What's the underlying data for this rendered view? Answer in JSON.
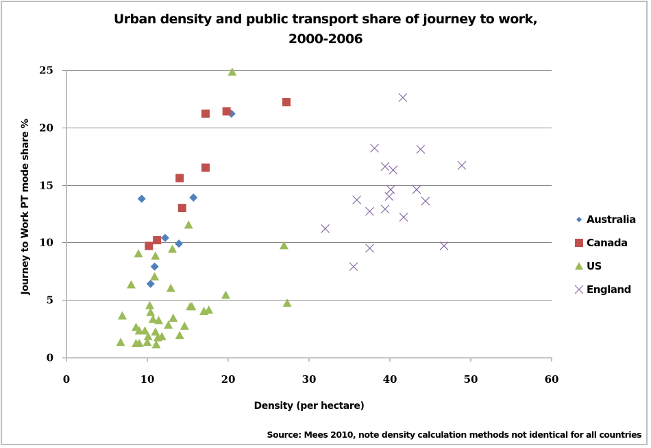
{
  "chart_data": {
    "type": "scatter",
    "title_lines": [
      "Urban density and public transport share of journey to work,",
      "2000-2006"
    ],
    "xlabel": "Density (per hectare)",
    "ylabel": "Journey to Work PT mode share %",
    "xlim": [
      0,
      60
    ],
    "ylim": [
      0,
      25
    ],
    "x_ticks": [
      0,
      10,
      20,
      30,
      40,
      50,
      60
    ],
    "y_ticks": [
      0,
      5,
      10,
      15,
      20,
      25
    ],
    "grid": "horizontal",
    "legend_position": "right",
    "source_note": "Source: Mees 2010, note density calculation methods not identical for all countries",
    "series": [
      {
        "name": "Australia",
        "marker": "diamond",
        "color": "#4f81bd",
        "points": [
          [
            9.3,
            13.8
          ],
          [
            15.7,
            13.9
          ],
          [
            20.4,
            21.2
          ],
          [
            12.2,
            10.4
          ],
          [
            13.9,
            9.9
          ],
          [
            10.9,
            7.9
          ],
          [
            10.4,
            6.4
          ]
        ]
      },
      {
        "name": "Canada",
        "marker": "square",
        "color": "#c0504d",
        "points": [
          [
            17.2,
            21.2
          ],
          [
            19.8,
            21.4
          ],
          [
            27.2,
            22.2
          ],
          [
            17.2,
            16.5
          ],
          [
            14.0,
            15.6
          ],
          [
            14.3,
            13.0
          ],
          [
            11.2,
            10.2
          ],
          [
            10.2,
            9.7
          ]
        ]
      },
      {
        "name": "US",
        "marker": "triangle",
        "color": "#9bbb59",
        "points": [
          [
            20.5,
            24.8
          ],
          [
            15.1,
            11.5
          ],
          [
            13.1,
            9.4
          ],
          [
            8.9,
            9.0
          ],
          [
            11.0,
            8.8
          ],
          [
            26.9,
            9.7
          ],
          [
            10.9,
            7.0
          ],
          [
            8.0,
            6.3
          ],
          [
            12.9,
            6.0
          ],
          [
            19.7,
            5.4
          ],
          [
            27.3,
            4.7
          ],
          [
            10.3,
            4.5
          ],
          [
            15.3,
            4.4
          ],
          [
            15.5,
            4.4
          ],
          [
            10.4,
            3.9
          ],
          [
            17.6,
            4.1
          ],
          [
            17.0,
            4.0
          ],
          [
            6.9,
            3.6
          ],
          [
            10.7,
            3.3
          ],
          [
            11.4,
            3.2
          ],
          [
            13.2,
            3.4
          ],
          [
            12.6,
            2.8
          ],
          [
            14.6,
            2.7
          ],
          [
            8.6,
            2.6
          ],
          [
            9.0,
            2.3
          ],
          [
            9.7,
            2.3
          ],
          [
            11.0,
            2.2
          ],
          [
            14.0,
            1.9
          ],
          [
            10.1,
            1.8
          ],
          [
            11.8,
            1.8
          ],
          [
            11.3,
            1.7
          ],
          [
            6.7,
            1.3
          ],
          [
            10.0,
            1.3
          ],
          [
            8.6,
            1.2
          ],
          [
            9.0,
            1.2
          ],
          [
            11.1,
            1.1
          ]
        ]
      },
      {
        "name": "England",
        "marker": "x",
        "color": "#8064a2",
        "points": [
          [
            41.6,
            22.6
          ],
          [
            38.1,
            18.2
          ],
          [
            43.8,
            18.1
          ],
          [
            39.4,
            16.6
          ],
          [
            40.4,
            16.3
          ],
          [
            48.9,
            16.7
          ],
          [
            40.1,
            14.6
          ],
          [
            39.9,
            14.0
          ],
          [
            43.3,
            14.6
          ],
          [
            44.4,
            13.6
          ],
          [
            35.9,
            13.7
          ],
          [
            37.5,
            12.7
          ],
          [
            39.4,
            12.9
          ],
          [
            41.7,
            12.2
          ],
          [
            32.0,
            11.2
          ],
          [
            37.5,
            9.5
          ],
          [
            46.7,
            9.7
          ],
          [
            35.5,
            7.9
          ]
        ]
      }
    ]
  }
}
